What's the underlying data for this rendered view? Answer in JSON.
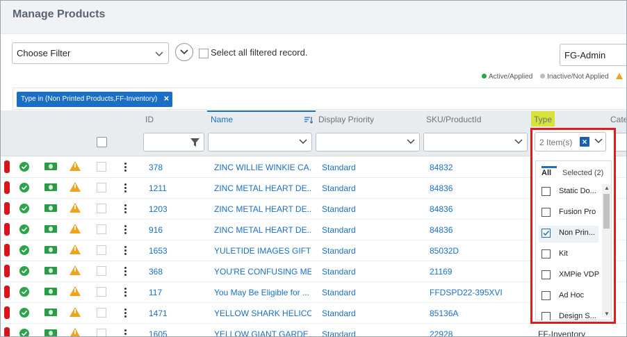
{
  "header": {
    "title": "Manage Products"
  },
  "toolbar": {
    "filter_placeholder": "Choose Filter",
    "select_all_label": "Select all filtered record.",
    "account": "FG-Admin"
  },
  "legend": {
    "active": "Active/Applied",
    "inactive": "Inactive/Not Applied",
    "active_color": "#2da34b",
    "inactive_color": "#b8bec4",
    "warn_color": "#f2a21a"
  },
  "chip": {
    "label": "Type in (Non Printed Products,FF-Inventory)",
    "close": "×"
  },
  "columns": {
    "id": "ID",
    "name": "Name",
    "display_priority": "Display Priority",
    "sku": "SKU/ProductId",
    "type": "Type",
    "category": "Categ"
  },
  "type_filter": {
    "summary": "2 Item(s)",
    "clear": "×",
    "tab_all": "All",
    "tab_selected": "Selected (2)",
    "options": [
      {
        "label": "Static Do...",
        "checked": false
      },
      {
        "label": "Fusion Pro",
        "checked": false
      },
      {
        "label": "Non Prin...",
        "checked": true
      },
      {
        "label": "Kit",
        "checked": false
      },
      {
        "label": "XMPie VDP",
        "checked": false
      },
      {
        "label": "Ad Hoc",
        "checked": false
      },
      {
        "label": "Design S...",
        "checked": false
      }
    ]
  },
  "rows": [
    {
      "id": "378",
      "name": "ZINC WILLIE WINKIE CA...",
      "priority": "Standard",
      "sku": "84832",
      "type": ""
    },
    {
      "id": "1211",
      "name": "ZINC METAL HEART DE...",
      "priority": "Standard",
      "sku": "84836",
      "type": ""
    },
    {
      "id": "1203",
      "name": "ZINC METAL HEART DE...",
      "priority": "Standard",
      "sku": "84836",
      "type": ""
    },
    {
      "id": "916",
      "name": "ZINC METAL HEART DE...",
      "priority": "Standard",
      "sku": "84836",
      "type": ""
    },
    {
      "id": "1653",
      "name": "YULETIDE IMAGES GIFT ...",
      "priority": "Standard",
      "sku": "85032D",
      "type": ""
    },
    {
      "id": "368",
      "name": "YOU'RE CONFUSING ME...",
      "priority": "Standard",
      "sku": "21169",
      "type": ""
    },
    {
      "id": "117",
      "name": "You May Be Eligible for ...",
      "priority": "Standard",
      "sku": "FFDSPD22-395XVI",
      "type": ""
    },
    {
      "id": "1471",
      "name": "YELLOW SHARK HELICO...",
      "priority": "Standard",
      "sku": "85136A",
      "type": ""
    },
    {
      "id": "1605",
      "name": "YELLOW GIANT GARDE...",
      "priority": "Standard",
      "sku": "22928",
      "type": "FF-Inventory"
    }
  ]
}
